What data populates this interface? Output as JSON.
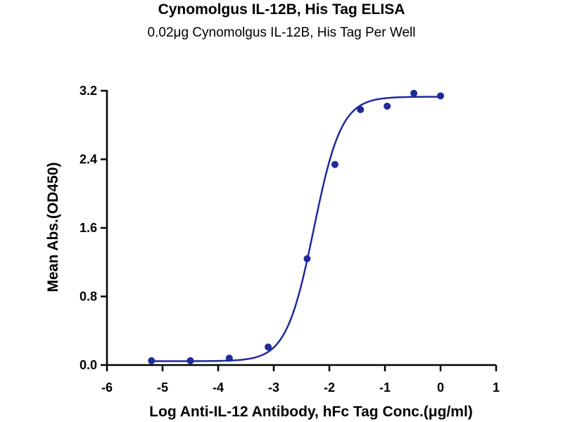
{
  "chart_data": {
    "type": "scatter",
    "title": "Cynomolgus IL-12B, His Tag ELISA",
    "subtitle": "0.02μg Cynomolgus IL-12B, His Tag Per Well",
    "xlabel": "Log Anti-IL-12 Antibody, hFc Tag Conc.(μg/ml)",
    "ylabel": "Mean Abs.(OD450)",
    "xlim": [
      -6,
      1
    ],
    "ylim": [
      0,
      3.2
    ],
    "x_ticks": [
      -6,
      -5,
      -4,
      -3,
      -2,
      -1,
      0,
      1
    ],
    "x_tick_labels": [
      "-6",
      "-5",
      "-4",
      "-3",
      "-2",
      "-1",
      "0",
      "1"
    ],
    "y_ticks": [
      0,
      0.8,
      1.6,
      2.4,
      3.2
    ],
    "y_tick_labels": [
      "0.0",
      "0.8",
      "1.6",
      "2.4",
      "3.2"
    ],
    "grid": false,
    "series": [
      {
        "x": [
          -5.2,
          -4.5,
          -3.8,
          -3.1,
          -2.4,
          -1.9,
          -1.44,
          -0.96,
          -0.48,
          0.0
        ],
        "y": [
          0.05,
          0.05,
          0.08,
          0.21,
          1.24,
          2.34,
          2.98,
          3.02,
          3.17,
          3.14
        ],
        "fit": "4PL sigmoidal",
        "fit_params": {
          "bottom": 0.045,
          "top": 3.13,
          "logEC50": -2.28,
          "hill": 1.75
        }
      }
    ],
    "colors": {
      "series": "#1f2a9c"
    }
  }
}
